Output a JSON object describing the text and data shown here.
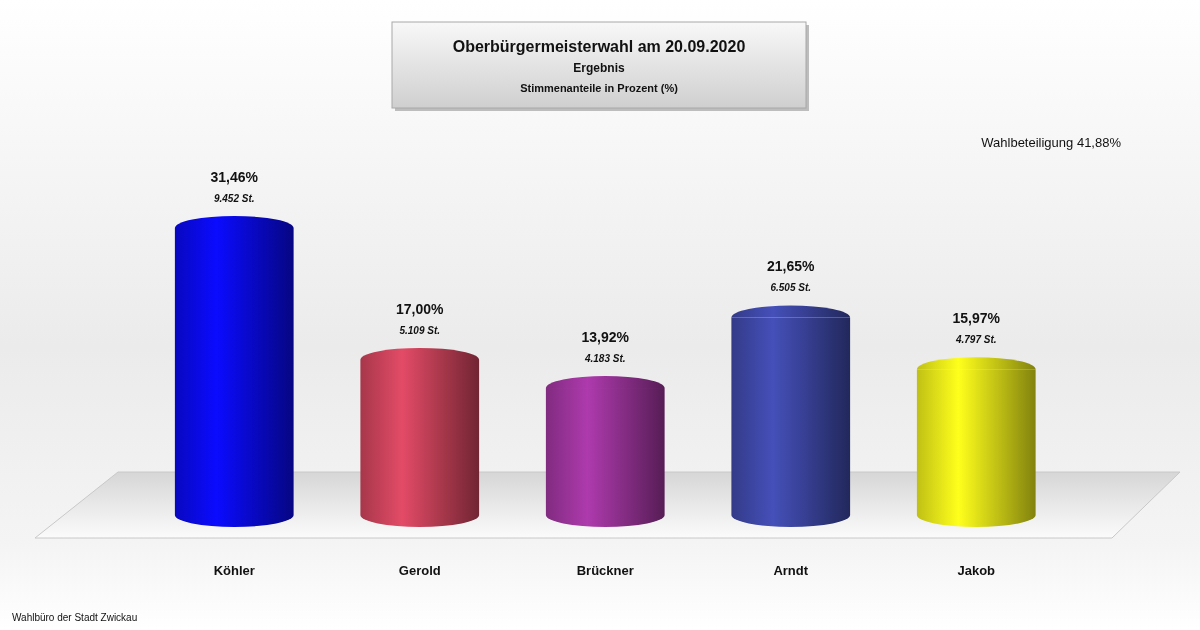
{
  "chart_data": {
    "type": "bar",
    "title": "Oberbürgermeisterwahl am 20.09.2020",
    "subtitle": "Ergebnis",
    "categories": [
      "Köhler",
      "Gerold",
      "Brückner",
      "Arndt",
      "Jakob"
    ],
    "values": [
      31.46,
      17.0,
      13.92,
      21.65,
      15.97
    ],
    "colors": [
      "#0a0ae6",
      "#c8425a",
      "#9a3399",
      "#3d47a3",
      "#e6e619"
    ],
    "value_labels": [
      "31,46%",
      "17,00%",
      "13,92%",
      "21,65%",
      "15,97%"
    ],
    "tick_labels": "x",
    "annotations": [
      "Stimmenanteile in Prozent (%)",
      "Wahlbeteiligung 41,88%",
      "Wahlbüro der Stadt Zwickau",
      {
        "text": "9.452 St.",
        "x": "Köhler",
        "y": 31.46
      },
      {
        "text": "5.109 St.",
        "x": "Gerold",
        "y": 17.0
      },
      {
        "text": "4.183 St.",
        "x": "Brückner",
        "y": 13.92
      },
      {
        "text": "6.505 St.",
        "x": "Arndt",
        "y": 21.65
      },
      {
        "text": "4.797 St.",
        "x": "Jakob",
        "y": 15.97
      }
    ]
  }
}
